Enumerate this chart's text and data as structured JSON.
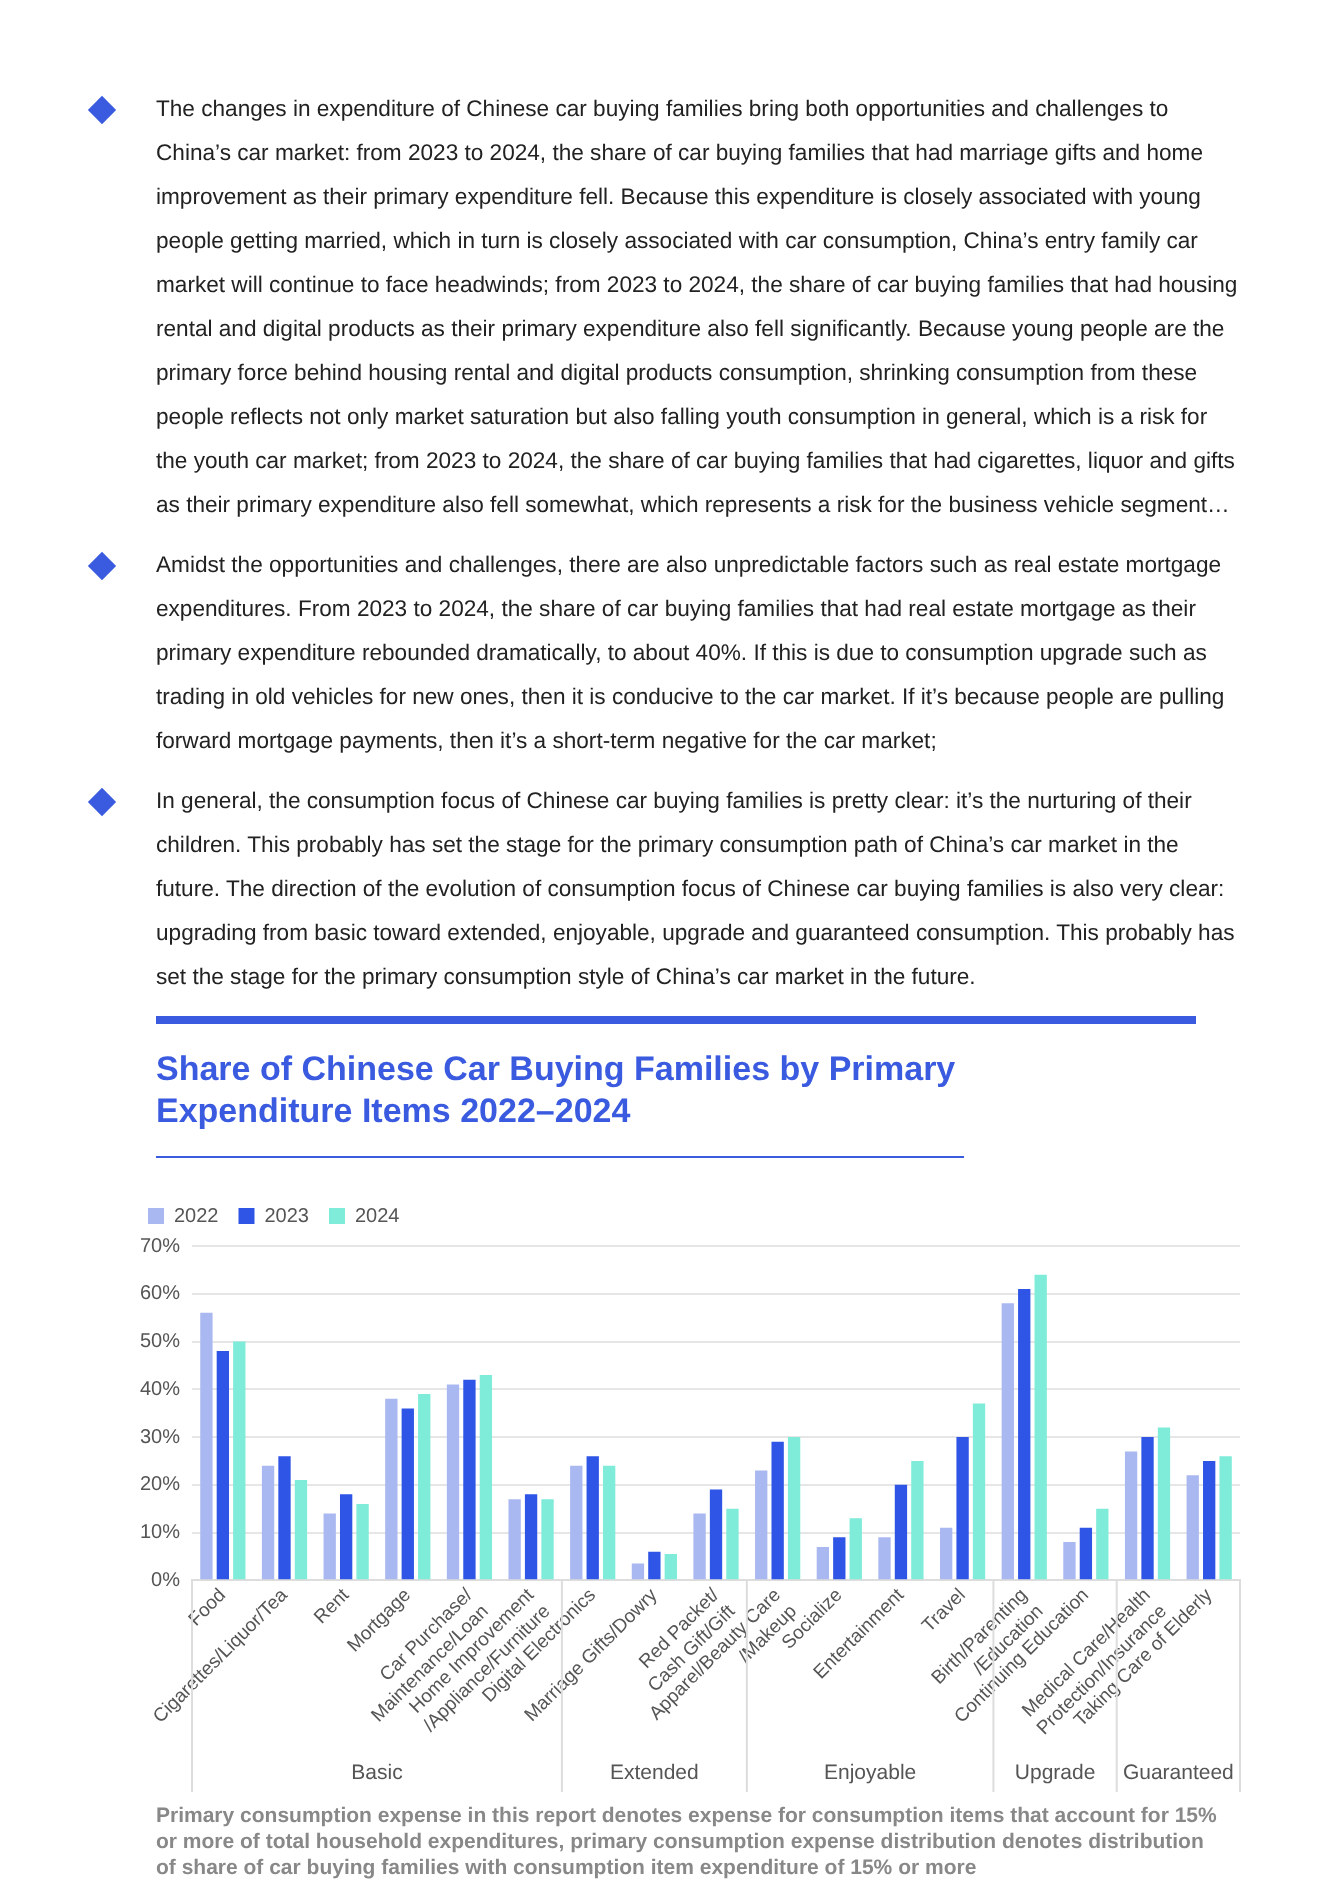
{
  "chart_data": {
    "type": "bar",
    "title": "Share of Chinese Car Buying Families by Primary Expenditure Items 2022–2024",
    "categories": [
      "Food",
      "Cigarettes/Liquor/Tea",
      "Rent",
      "Mortgage",
      "Car Purchase/\nMaintenance/Loan",
      "Home Improvement\n/Appliance/Furniture",
      "Digital Electronics",
      "Marriage Gifts/Dowry",
      "Red Packet/\nCash Gift/Gift",
      "Apparel/Beauty Care\n/Makeup",
      "Socialize",
      "Entertainment",
      "Travel",
      "Birth/Parenting\n/Education",
      "Continuing Education",
      "Medical Care/Health\nProtection/Insurance",
      "Taking Care of Elderly"
    ],
    "series": [
      {
        "name": "2022",
        "color": "#a9b8f0",
        "values": [
          56,
          24,
          14,
          38,
          41,
          17,
          24,
          3.5,
          14,
          23,
          7,
          9,
          11,
          58,
          8,
          27,
          22
        ]
      },
      {
        "name": "2023",
        "color": "#2f55e6",
        "values": [
          48,
          26,
          18,
          36,
          42,
          18,
          26,
          6,
          19,
          29,
          9,
          20,
          30,
          61,
          11,
          30,
          25
        ]
      },
      {
        "name": "2024",
        "color": "#7eecd8",
        "values": [
          50,
          21,
          16,
          39,
          43,
          17,
          24,
          5.5,
          15,
          30,
          13,
          25,
          37,
          64,
          15,
          32,
          26
        ]
      }
    ],
    "ylim": [
      0,
      70
    ],
    "yticks": [
      {
        "value": 0,
        "label": "0%"
      },
      {
        "value": 10,
        "label": "10%"
      },
      {
        "value": 20,
        "label": "20%"
      },
      {
        "value": 30,
        "label": "30%"
      },
      {
        "value": 40,
        "label": "40%"
      },
      {
        "value": 50,
        "label": "50%"
      },
      {
        "value": 60,
        "label": "60%"
      },
      {
        "value": 70,
        "label": "70%"
      }
    ],
    "grid": "y",
    "legend": "top left",
    "annotations": [
      "The changes in expenditure of Chinese car buying families bring both opportunities and challenges to China’s car market: from 2023 to 2024, the share of car buying families that had marriage gifts and home improvement as their primary expenditure fell. Because this expenditure is closely associated with young people getting married, which in turn is closely associated with car consumption, China’s entry family car market will continue to face headwinds; from 2023 to 2024, the share of car buying families that had housing rental and digital products as their primary expenditure also fell significantly. Because young people are the primary force behind housing rental and digital products consumption, shrinking consumption from these people reflects not only market saturation but also falling youth consumption in general, which is a risk for the youth car market; from 2023 to 2024, the share of car buying families that had cigarettes, liquor and gifts as their primary expenditure also fell somewhat, which represents a risk for the business vehicle segment…",
      "Amidst the opportunities and challenges, there are also unpredictable factors such as real estate mortgage expenditures. From 2023 to 2024, the share of car buying families that had real estate mortgage as their primary expenditure rebounded dramatically, to about 40%. If this is due to consumption upgrade such as trading in old vehicles for new ones, then it is conducive to the car market. If it’s because people are pulling forward mortgage payments, then it’s a short-term negative for the car market;",
      "In general, the consumption focus of Chinese car buying families is pretty clear: it’s the nurturing of their children. This probably has set the stage for the primary consumption path of China’s car market in the future. The direction of the evolution of consumption focus of Chinese car buying families is also very clear: upgrading from basic toward extended, enjoyable, upgrade and guaranteed consumption. This probably has set the stage for the primary consumption style of China’s car market in the future.",
      "Basic",
      "Extended",
      "Enjoyable",
      "Upgrade",
      "Guaranteed",
      "Primary consumption expense in this report denotes expense for consumption items that account for 15% or more of total household expenditures, primary consumption expense distribution denotes distribution of share of car buying families with consumption item expenditure of 15% or more"
    ]
  }
}
